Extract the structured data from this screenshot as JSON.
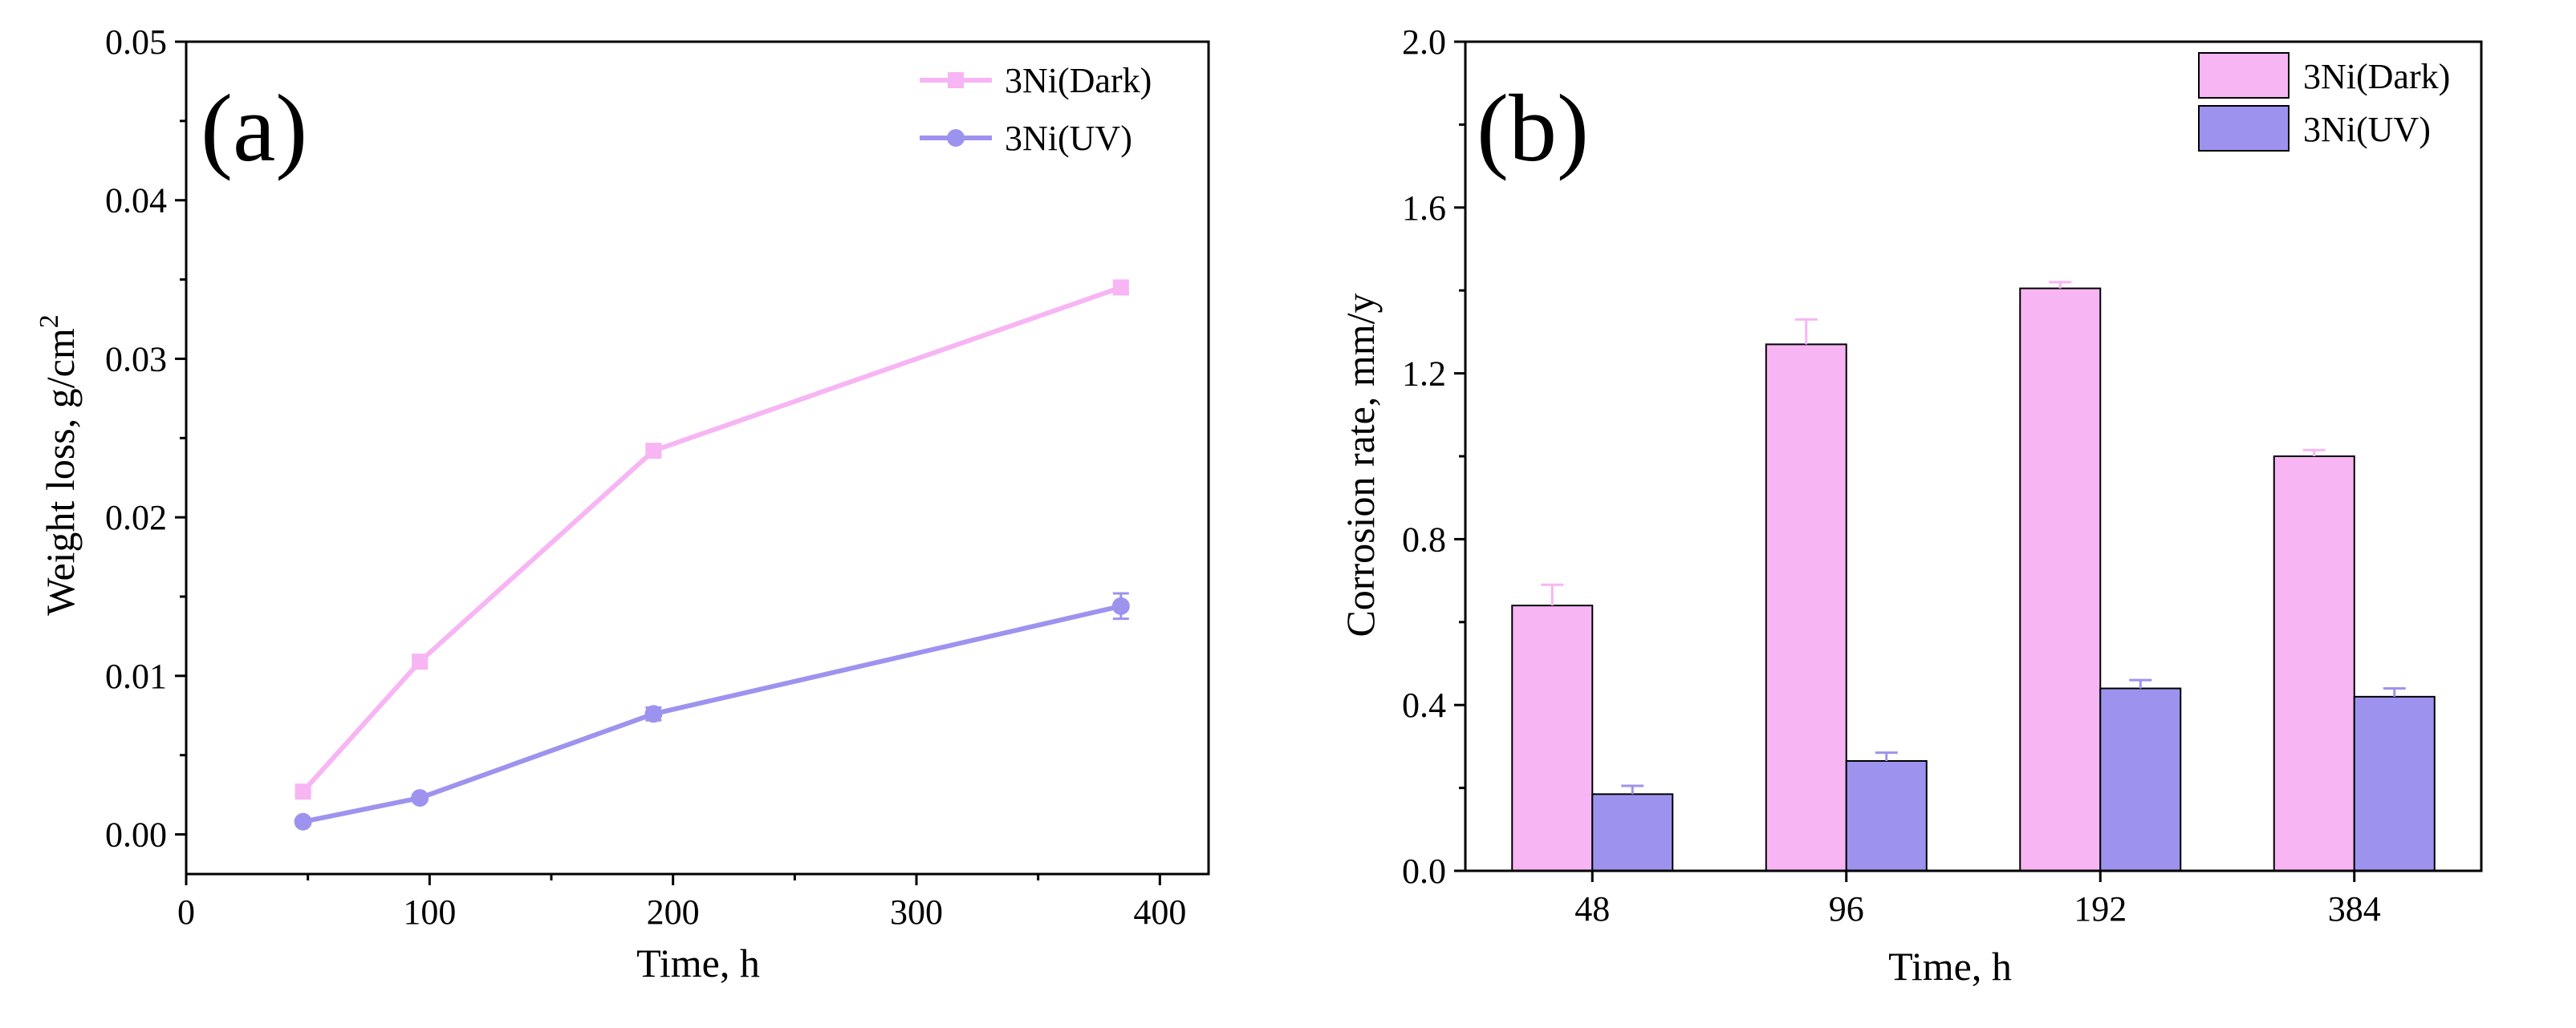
{
  "colors": {
    "dark": "#f7b5f4",
    "uv": "#9d93ef",
    "axis": "#000000"
  },
  "chart_data": [
    {
      "type": "line",
      "panel_label": "(a)",
      "xlabel": "Time, h",
      "ylabel": "Weight loss, g/cm",
      "ylabel_superscript": "2",
      "xlim": [
        0,
        420
      ],
      "ylim": [
        -0.0025,
        0.05
      ],
      "xticks": [
        0,
        100,
        200,
        300,
        400
      ],
      "xtick_labels": [
        "0",
        "100",
        "200",
        "300",
        "400"
      ],
      "yticks": [
        0,
        0.01,
        0.02,
        0.03,
        0.04,
        0.05
      ],
      "ytick_labels": [
        "0.00",
        "0.01",
        "0.02",
        "0.03",
        "0.04",
        "0.05"
      ],
      "legend_position": "top-right",
      "series": [
        {
          "name": "3Ni(Dark)",
          "marker": "square",
          "color": "#f7b5f4",
          "x": [
            48,
            96,
            192,
            384
          ],
          "y": [
            0.0027,
            0.0109,
            0.0242,
            0.0345
          ],
          "err": [
            0.0002,
            0.0002,
            0.0003,
            0.0004
          ]
        },
        {
          "name": "3Ni(UV)",
          "marker": "circle",
          "color": "#9d93ef",
          "x": [
            48,
            96,
            192,
            384
          ],
          "y": [
            0.0008,
            0.0023,
            0.0076,
            0.0144
          ],
          "err": [
            0.0001,
            0.0002,
            0.0004,
            0.0008
          ]
        }
      ]
    },
    {
      "type": "bar",
      "panel_label": "(b)",
      "xlabel": "Time, h",
      "ylabel": "Corrosion rate, mm/y",
      "categories": [
        "48",
        "96",
        "192",
        "384"
      ],
      "ylim": [
        0,
        2.0
      ],
      "yticks": [
        0,
        0.4,
        0.8,
        1.2,
        1.6,
        2.0
      ],
      "ytick_labels": [
        "0.0",
        "0.4",
        "0.8",
        "1.2",
        "1.6",
        "2.0"
      ],
      "legend_position": "top-right",
      "series": [
        {
          "name": "3Ni(Dark)",
          "color": "#f7b5f4",
          "values": [
            0.64,
            1.27,
            1.405,
            1.0
          ],
          "err": [
            0.05,
            0.06,
            0.015,
            0.015
          ]
        },
        {
          "name": "3Ni(UV)",
          "color": "#9d93ef",
          "values": [
            0.185,
            0.265,
            0.44,
            0.42
          ],
          "err": [
            0.02,
            0.02,
            0.02,
            0.02
          ]
        }
      ]
    }
  ]
}
